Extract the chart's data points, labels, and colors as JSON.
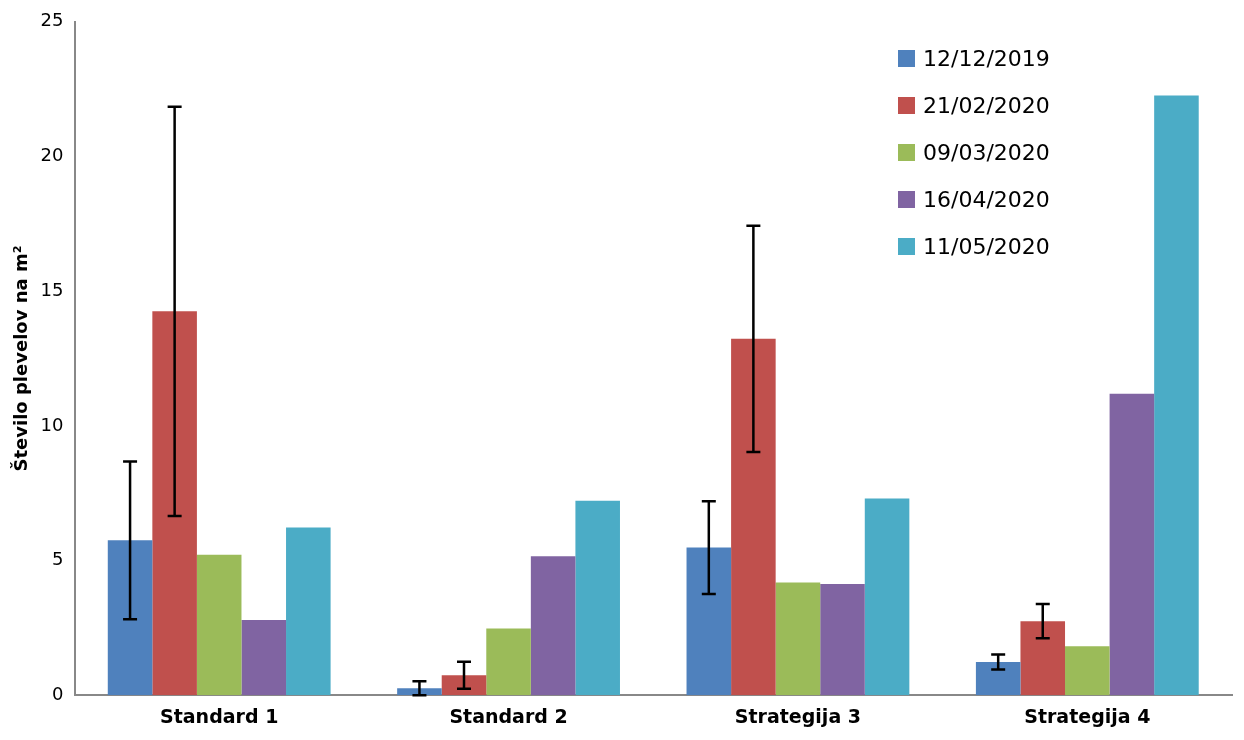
{
  "chart_data": {
    "type": "bar",
    "ylabel": "Število plevelov na m²",
    "categories": [
      "Standard 1",
      "Standard 2",
      "Strategija 3",
      "Strategija 4"
    ],
    "series": [
      {
        "name": "12/12/2019",
        "color": "#4f81bd",
        "values": [
          5.75,
          0.26,
          5.48,
          1.23
        ],
        "errors": [
          2.93,
          0.26,
          1.72,
          0.28
        ]
      },
      {
        "name": "21/02/2020",
        "color": "#c0504d",
        "values": [
          14.25,
          0.74,
          13.23,
          2.75
        ],
        "errors": [
          7.6,
          0.5,
          4.2,
          0.64
        ]
      },
      {
        "name": "09/03/2020",
        "color": "#9bbb59",
        "values": [
          5.21,
          2.48,
          4.18,
          1.82
        ]
      },
      {
        "name": "16/04/2020",
        "color": "#8064a2",
        "values": [
          2.79,
          5.16,
          4.13,
          11.19
        ]
      },
      {
        "name": "11/05/2020",
        "color": "#4bacc6",
        "values": [
          6.23,
          7.22,
          7.3,
          22.26
        ]
      }
    ],
    "ylim": [
      0,
      25
    ],
    "yticks": [
      0,
      5,
      10,
      15,
      20,
      25
    ],
    "grid": false,
    "legend": "top right"
  }
}
